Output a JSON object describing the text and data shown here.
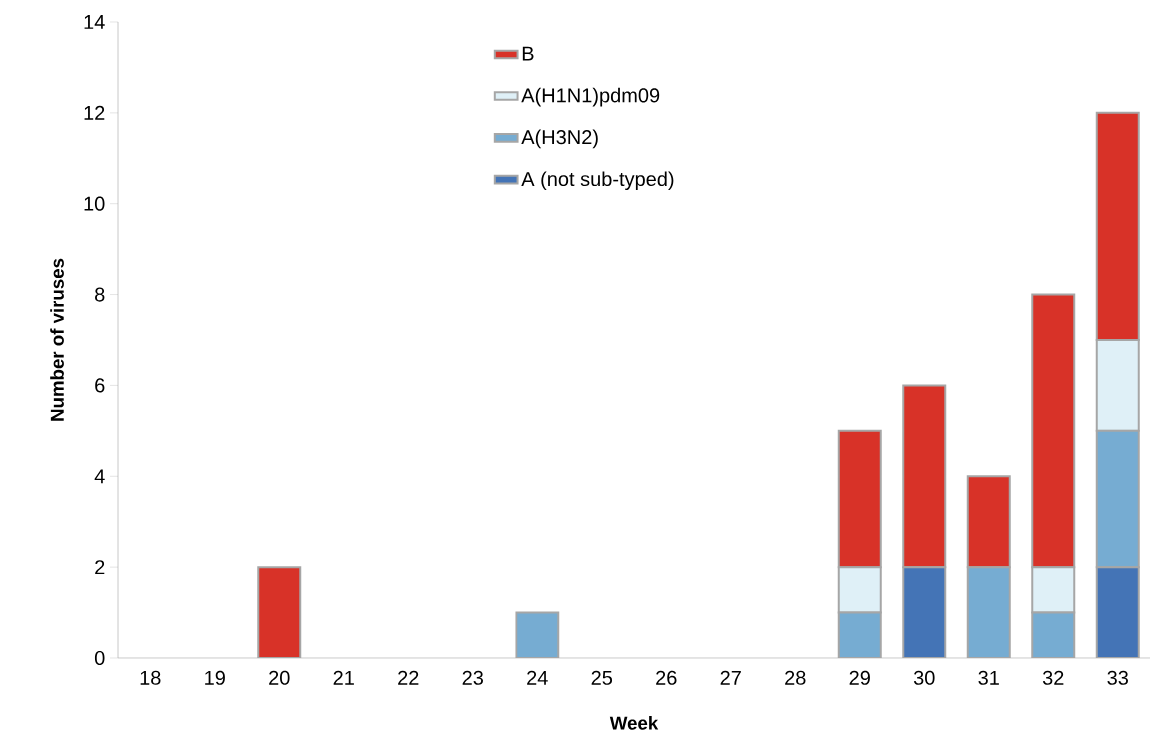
{
  "chart_data": {
    "type": "bar",
    "stacked": true,
    "xlabel": "Week",
    "ylabel": "Number of viruses",
    "categories": [
      "18",
      "19",
      "20",
      "21",
      "22",
      "23",
      "24",
      "25",
      "26",
      "27",
      "28",
      "29",
      "30",
      "31",
      "32",
      "33"
    ],
    "series": [
      {
        "name": "A (not sub-typed)",
        "color": "#4474b6",
        "values": [
          0,
          0,
          0,
          0,
          0,
          0,
          0,
          0,
          0,
          0,
          0,
          0,
          2,
          0,
          0,
          2
        ]
      },
      {
        "name": "A(H3N2)",
        "color": "#76acd2",
        "values": [
          0,
          0,
          0,
          0,
          0,
          0,
          1,
          0,
          0,
          0,
          0,
          1,
          0,
          2,
          1,
          3
        ]
      },
      {
        "name": "A(H1N1)pdm09",
        "color": "#dff0f7",
        "values": [
          0,
          0,
          0,
          0,
          0,
          0,
          0,
          0,
          0,
          0,
          0,
          1,
          0,
          0,
          1,
          2
        ]
      },
      {
        "name": "B",
        "color": "#d83228",
        "values": [
          0,
          0,
          2,
          0,
          0,
          0,
          0,
          0,
          0,
          0,
          0,
          3,
          4,
          2,
          6,
          5
        ]
      }
    ],
    "ylim": [
      0,
      14
    ],
    "yticks": [
      0,
      2,
      4,
      6,
      8,
      10,
      12,
      14
    ],
    "legend": "top",
    "grid": false
  }
}
